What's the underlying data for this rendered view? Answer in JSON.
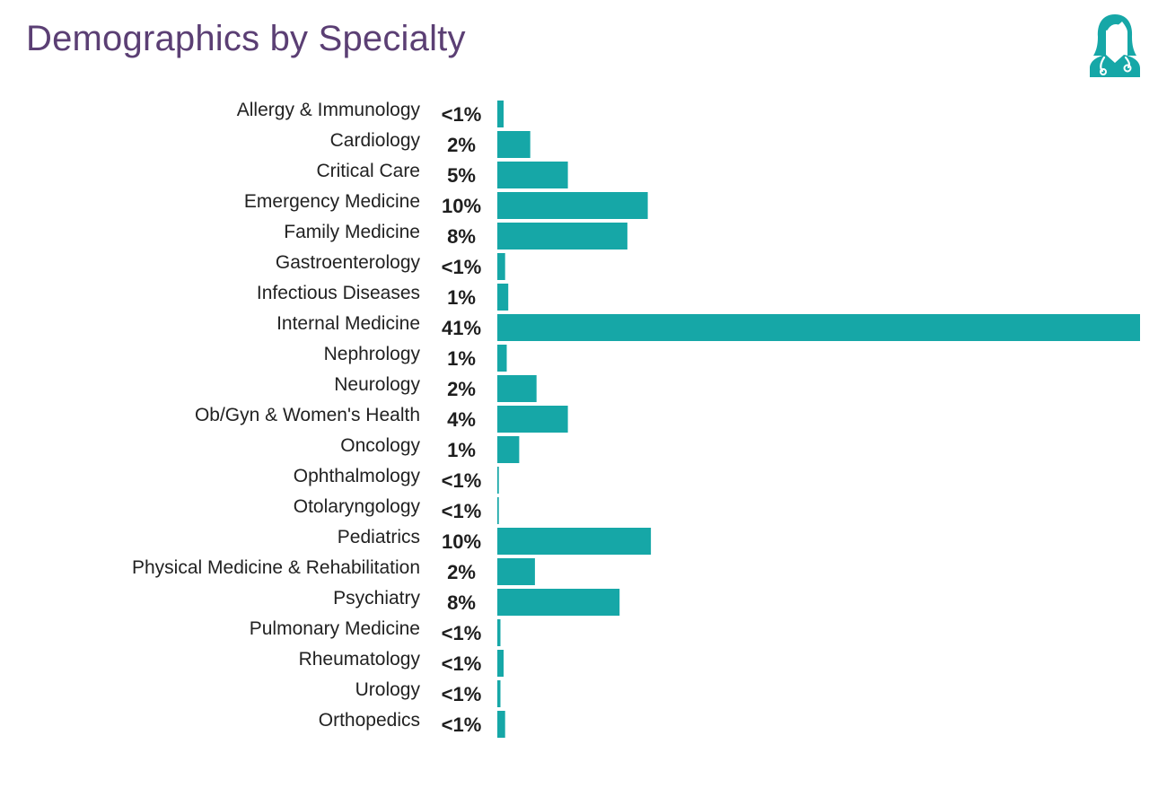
{
  "title": "Demographics by Specialty",
  "icons": {
    "header_icon": "doctor-icon"
  },
  "colors": {
    "bar": "#16a7a7",
    "title": "#5b3f74",
    "icon": "#16a7a7"
  },
  "chart_data": {
    "type": "bar",
    "orientation": "horizontal",
    "title": "Demographics by Specialty",
    "xlabel": "",
    "ylabel": "",
    "grid": false,
    "unit": "%",
    "xlim": [
      0,
      41
    ],
    "categories": [
      "Allergy & Immunology",
      "Cardiology",
      "Critical Care",
      "Emergency Medicine",
      "Family Medicine",
      "Gastroenterology",
      "Infectious Diseases",
      "Internal Medicine",
      "Nephrology",
      "Neurology",
      "Ob/Gyn & Women's Health",
      "Oncology",
      "Ophthalmology",
      "Otolaryngology",
      "Pediatrics",
      "Physical Medicine & Rehabilitation",
      "Psychiatry",
      "Pulmonary Medicine",
      "Rheumatology",
      "Urology",
      "Orthopedics"
    ],
    "value_labels": [
      "<1%",
      "2%",
      "5%",
      "10%",
      "8%",
      "<1%",
      "1%",
      "41%",
      "1%",
      "2%",
      "4%",
      "1%",
      "<1%",
      "<1%",
      "10%",
      "2%",
      "8%",
      "<1%",
      "<1%",
      "<1%",
      "<1%"
    ],
    "values": [
      0.4,
      2.1,
      4.5,
      9.6,
      8.3,
      0.5,
      0.7,
      41,
      0.6,
      2.5,
      4.5,
      1.4,
      0.1,
      0.1,
      9.8,
      2.4,
      7.8,
      0.2,
      0.4,
      0.2,
      0.5
    ]
  }
}
